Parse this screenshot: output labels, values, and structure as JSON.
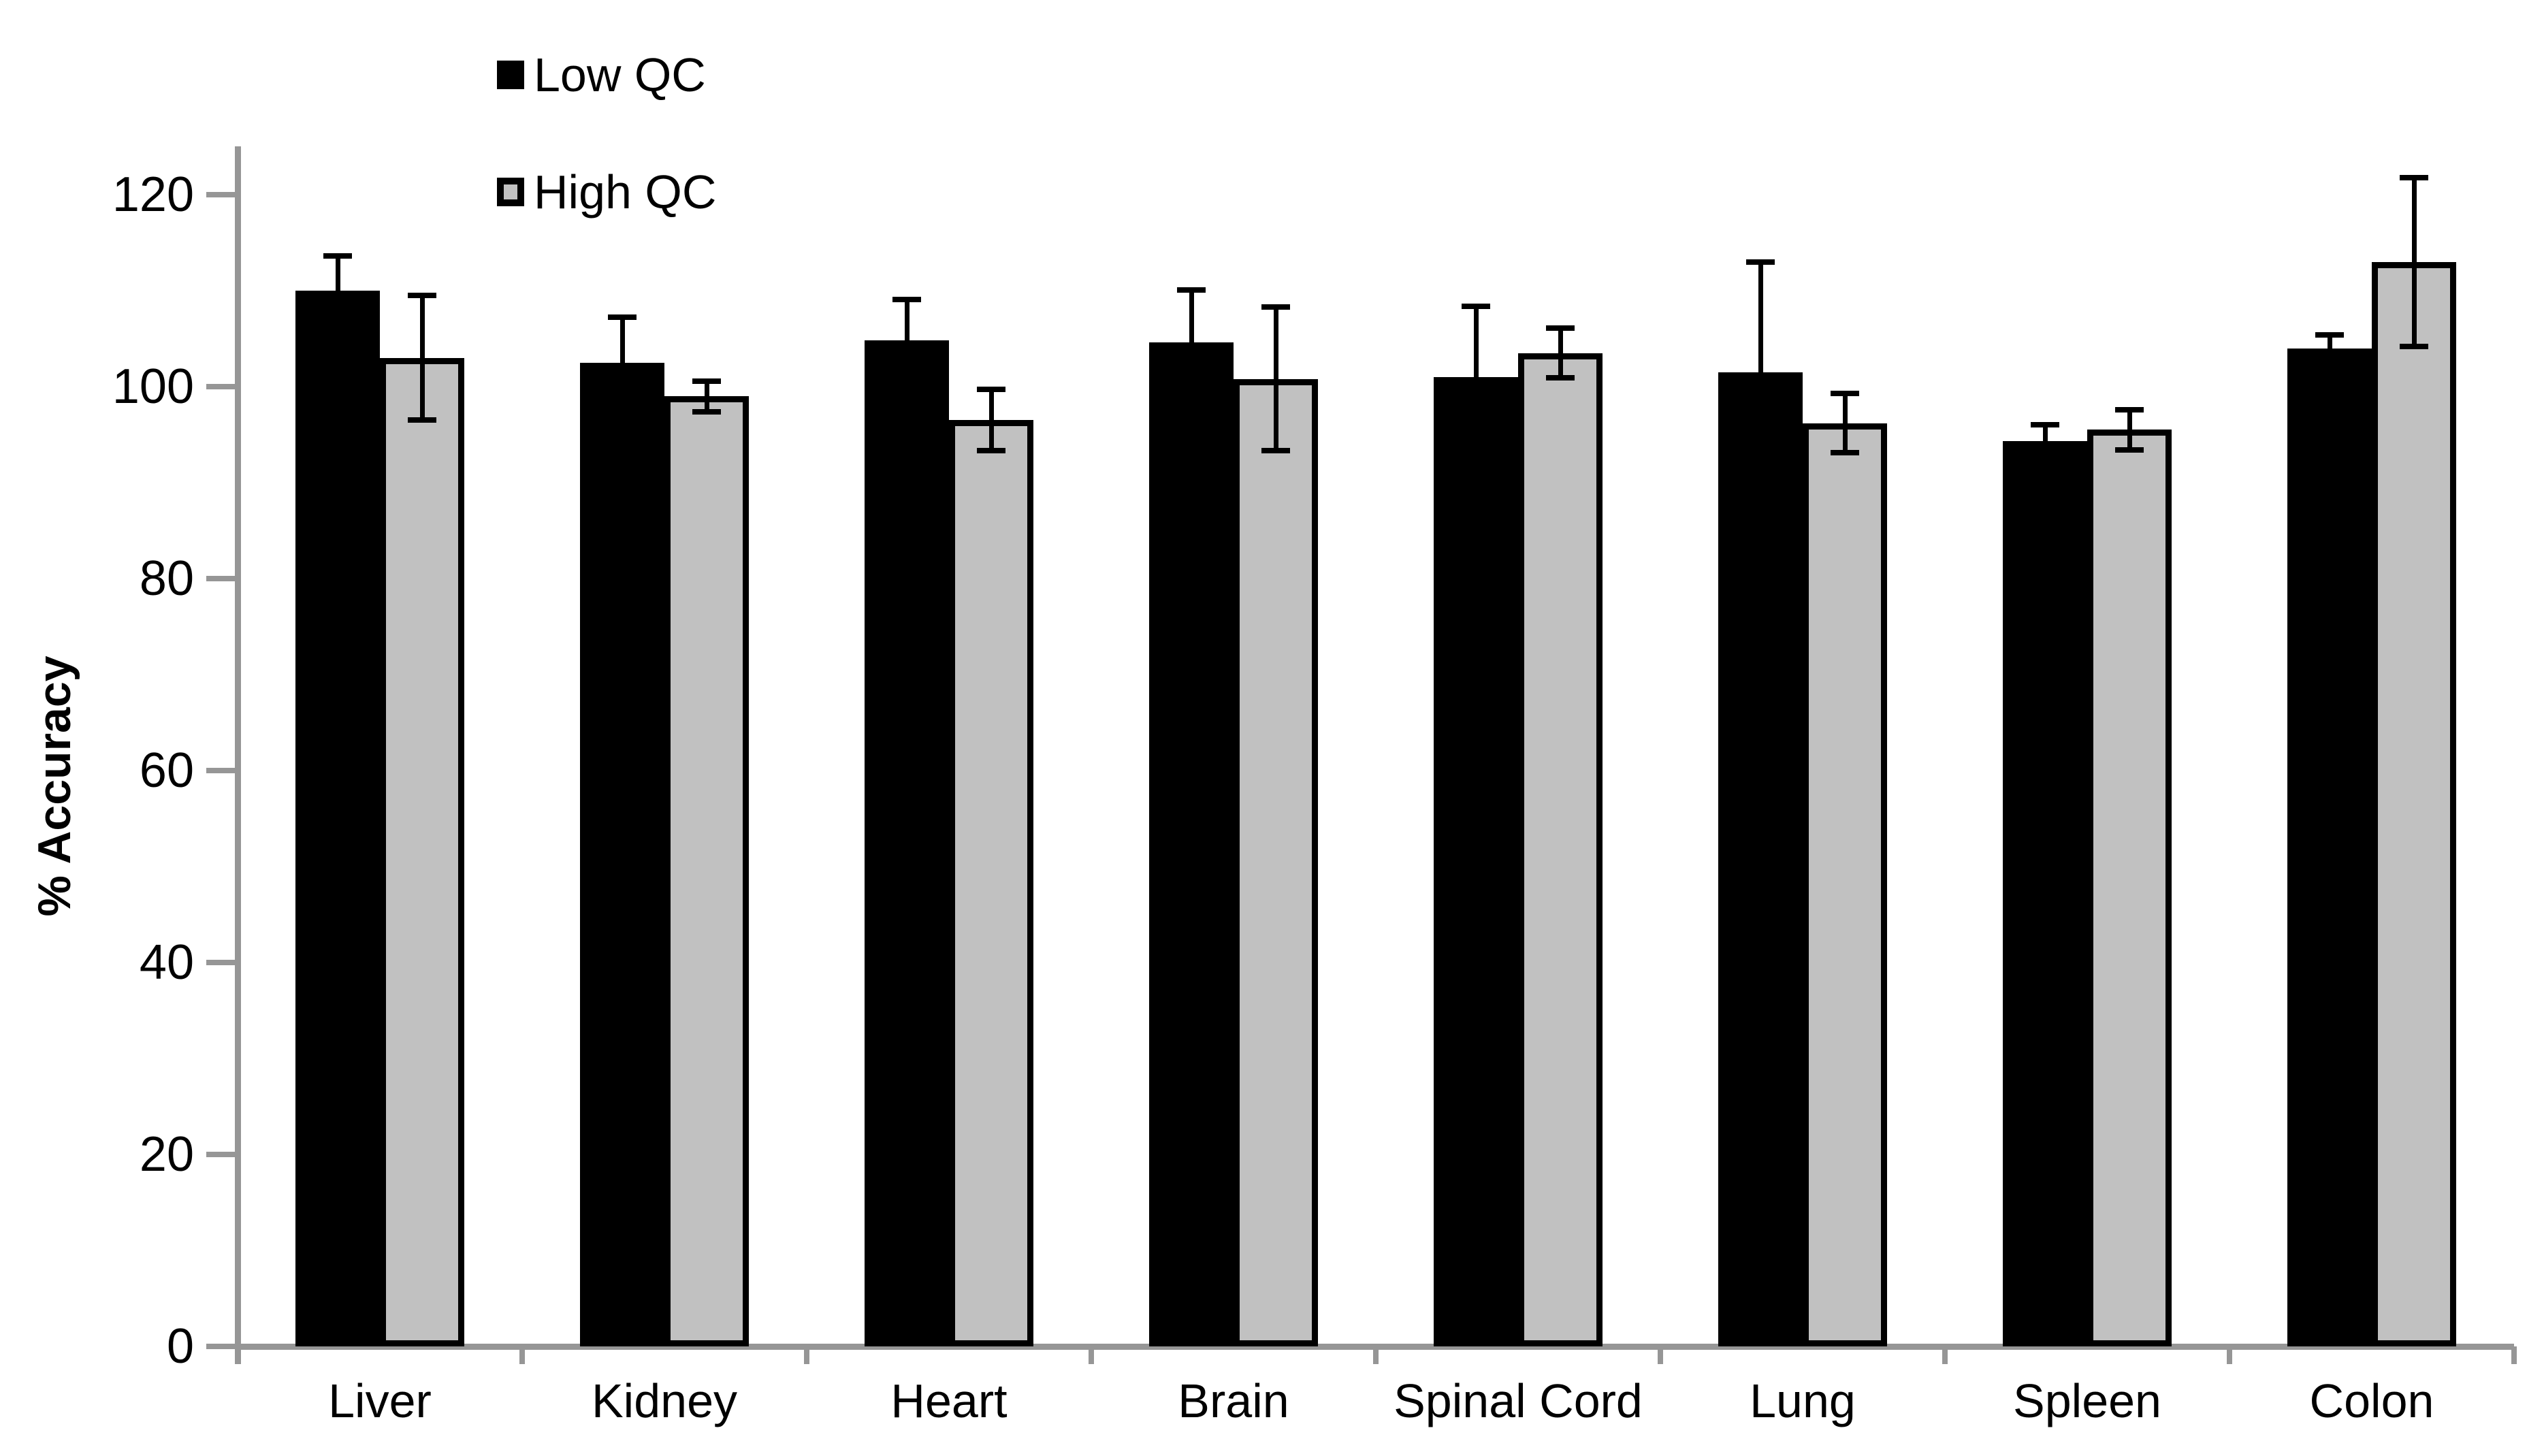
{
  "chart_data": {
    "type": "bar",
    "title": "",
    "ylabel": "% Accuracy",
    "xlabel": "",
    "categories": [
      "Liver",
      "Kidney",
      "Heart",
      "Brain",
      "Spinal Cord",
      "Lung",
      "Spleen",
      "Colon"
    ],
    "series": [
      {
        "name": "Low QC",
        "fill_color": "#000000",
        "border_color": "#000000",
        "values": [
          110,
          102.5,
          104.8,
          104.6,
          101,
          101.5,
          94.3,
          104
        ],
        "errors": [
          3.6,
          4.7,
          4.3,
          5.5,
          7.4,
          11.5,
          1.7,
          1.4
        ]
      },
      {
        "name": "High QC",
        "fill_color": "#C1C1C1",
        "border_color": "#000000",
        "values": [
          103,
          99,
          96.5,
          100.8,
          103.5,
          96.2,
          95.5,
          113
        ],
        "errors": [
          6.5,
          1.6,
          3.2,
          7.5,
          2.6,
          3.1,
          2.1,
          8.8
        ]
      }
    ],
    "ylim": [
      0,
      120
    ],
    "yticks": [
      0,
      20,
      40,
      60,
      80,
      100,
      120
    ],
    "grid": false,
    "legend_position": "top-left-inside",
    "error_bar_color": "#000000",
    "axis_color": "#969696",
    "background_color": "#ffffff"
  }
}
